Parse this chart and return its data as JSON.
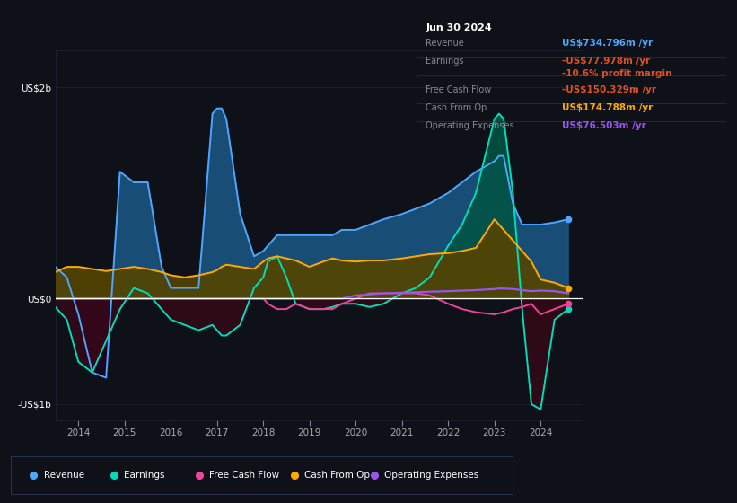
{
  "bg_color": "#0e1117",
  "plot_bg_color": "#0e1117",
  "grid_color": "#1e2535",
  "zero_line_color": "#ffffff",
  "figsize": [
    8.21,
    5.6
  ],
  "dpi": 100,
  "title_box": {
    "date": "Jun 30 2024",
    "rows": [
      {
        "label": "Revenue",
        "value": "US$734.796m /yr",
        "value_color": "#4da6ff"
      },
      {
        "label": "Earnings",
        "value": "-US$77.978m /yr",
        "value_color": "#e05020"
      },
      {
        "label": "",
        "value": "-10.6% profit margin",
        "value_color": "#e05020"
      },
      {
        "label": "Free Cash Flow",
        "value": "-US$150.329m /yr",
        "value_color": "#e05020"
      },
      {
        "label": "Cash From Op",
        "value": "US$174.788m /yr",
        "value_color": "#ffaa00"
      },
      {
        "label": "Operating Expenses",
        "value": "US$76.503m /yr",
        "value_color": "#9955ee"
      }
    ],
    "label_color": "#888899",
    "bg": "#0a0e18",
    "border_color": "#2a3050"
  },
  "ylim": [
    -1150000000.0,
    2350000000.0
  ],
  "yticks": [
    -1000000000.0,
    0,
    2000000000.0
  ],
  "ytick_labels": [
    "-US$1b",
    "US$0",
    "US$2b"
  ],
  "xlim": [
    2013.5,
    2024.9
  ],
  "xtick_years": [
    2014,
    2015,
    2016,
    2017,
    2018,
    2019,
    2020,
    2021,
    2022,
    2023,
    2024
  ],
  "legend": [
    {
      "label": "Revenue",
      "color": "#4da6ff"
    },
    {
      "label": "Earnings",
      "color": "#00ddbb"
    },
    {
      "label": "Free Cash Flow",
      "color": "#ee4499"
    },
    {
      "label": "Cash From Op",
      "color": "#ffaa00"
    },
    {
      "label": "Operating Expenses",
      "color": "#9955ee"
    }
  ],
  "rev_line_color": "#4da6ff",
  "rev_fill_pos": "#1a5580",
  "rev_fill_neg": "#1a0520",
  "earn_line_color": "#00ddbb",
  "earn_fill_pos": "#005544",
  "earn_fill_neg": "#3a0818",
  "cfo_line_color": "#ffaa00",
  "cfo_fill_pos": "#554400",
  "fcf_line_color": "#ee4499",
  "opex_line_color": "#9955ee",
  "years": [
    2013.5,
    2013.75,
    2014.0,
    2014.3,
    2014.6,
    2014.9,
    2015.2,
    2015.5,
    2015.8,
    2016.0,
    2016.3,
    2016.6,
    2016.9,
    2017.0,
    2017.1,
    2017.2,
    2017.5,
    2017.8,
    2018.0,
    2018.1,
    2018.3,
    2018.5,
    2018.7,
    2019.0,
    2019.3,
    2019.5,
    2019.7,
    2020.0,
    2020.3,
    2020.6,
    2021.0,
    2021.3,
    2021.6,
    2022.0,
    2022.3,
    2022.6,
    2023.0,
    2023.1,
    2023.2,
    2023.4,
    2023.6,
    2023.8,
    2024.0,
    2024.3,
    2024.6
  ],
  "revenue": [
    300000000.0,
    200000000.0,
    -150000000.0,
    -700000000.0,
    -750000000.0,
    1200000000.0,
    1100000000.0,
    1100000000.0,
    300000000.0,
    100000000.0,
    100000000.0,
    100000000.0,
    1750000000.0,
    1800000000.0,
    1800000000.0,
    1700000000.0,
    800000000.0,
    400000000.0,
    450000000.0,
    500000000.0,
    600000000.0,
    600000000.0,
    600000000.0,
    600000000.0,
    600000000.0,
    600000000.0,
    650000000.0,
    650000000.0,
    700000000.0,
    750000000.0,
    800000000.0,
    850000000.0,
    900000000.0,
    1000000000.0,
    1100000000.0,
    1200000000.0,
    1300000000.0,
    1350000000.0,
    1350000000.0,
    900000000.0,
    700000000.0,
    700000000.0,
    700000000.0,
    720000000.0,
    750000000.0
  ],
  "earnings": [
    -80000000.0,
    -200000000.0,
    -600000000.0,
    -700000000.0,
    -400000000.0,
    -100000000.0,
    100000000.0,
    50000000.0,
    -100000000.0,
    -200000000.0,
    -250000000.0,
    -300000000.0,
    -250000000.0,
    -300000000.0,
    -350000000.0,
    -350000000.0,
    -250000000.0,
    100000000.0,
    200000000.0,
    350000000.0,
    400000000.0,
    200000000.0,
    -50000000.0,
    -100000000.0,
    -100000000.0,
    -80000000.0,
    -50000000.0,
    -50000000.0,
    -80000000.0,
    -50000000.0,
    50000000.0,
    100000000.0,
    200000000.0,
    500000000.0,
    700000000.0,
    1000000000.0,
    1700000000.0,
    1750000000.0,
    1700000000.0,
    1000000000.0,
    -100000000.0,
    -1000000000.0,
    -1050000000.0,
    -200000000.0,
    -100000000.0
  ],
  "free_cash_flow": [
    0,
    0,
    0,
    0,
    0,
    0,
    0,
    0,
    0,
    0,
    0,
    0,
    0,
    0,
    0,
    0,
    0,
    0,
    0,
    -50000000.0,
    -100000000.0,
    -100000000.0,
    -50000000.0,
    -100000000.0,
    -100000000.0,
    -100000000.0,
    -50000000.0,
    0,
    50000000.0,
    50000000.0,
    50000000.0,
    50000000.0,
    30000000.0,
    -50000000.0,
    -100000000.0,
    -130000000.0,
    -150000000.0,
    -140000000.0,
    -130000000.0,
    -100000000.0,
    -80000000.0,
    -50000000.0,
    -150000000.0,
    -100000000.0,
    -50000000.0
  ],
  "cash_from_op": [
    250000000.0,
    300000000.0,
    300000000.0,
    280000000.0,
    260000000.0,
    280000000.0,
    300000000.0,
    280000000.0,
    250000000.0,
    220000000.0,
    200000000.0,
    220000000.0,
    250000000.0,
    270000000.0,
    300000000.0,
    320000000.0,
    300000000.0,
    280000000.0,
    350000000.0,
    380000000.0,
    400000000.0,
    380000000.0,
    360000000.0,
    300000000.0,
    350000000.0,
    380000000.0,
    360000000.0,
    350000000.0,
    360000000.0,
    360000000.0,
    380000000.0,
    400000000.0,
    420000000.0,
    430000000.0,
    450000000.0,
    480000000.0,
    750000000.0,
    700000000.0,
    650000000.0,
    550000000.0,
    450000000.0,
    350000000.0,
    180000000.0,
    150000000.0,
    100000000.0
  ],
  "operating_expenses": [
    0,
    0,
    0,
    0,
    0,
    0,
    0,
    0,
    0,
    0,
    0,
    0,
    0,
    0,
    0,
    0,
    0,
    0,
    0,
    0,
    0,
    0,
    0,
    0,
    0,
    0,
    0,
    30000000.0,
    40000000.0,
    50000000.0,
    55000000.0,
    60000000.0,
    65000000.0,
    70000000.0,
    75000000.0,
    80000000.0,
    90000000.0,
    95000000.0,
    95000000.0,
    90000000.0,
    80000000.0,
    70000000.0,
    75000000.0,
    70000000.0,
    50000000.0
  ]
}
